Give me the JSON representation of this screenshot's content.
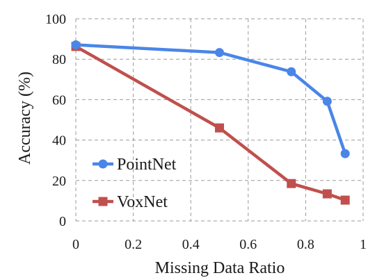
{
  "chart_data": {
    "type": "line",
    "title": "",
    "xlabel": "Missing Data Ratio",
    "ylabel": "Accuracy (%)",
    "xlim": [
      0,
      1
    ],
    "ylim": [
      0,
      100
    ],
    "xticks": [
      0,
      0.2,
      0.4,
      0.6,
      0.8,
      1
    ],
    "xtick_labels": [
      "0",
      "0.2",
      "0.4",
      "0.6",
      "0.8",
      "1"
    ],
    "yticks": [
      0,
      20,
      40,
      60,
      80,
      100
    ],
    "ytick_labels": [
      "0",
      "20",
      "40",
      "60",
      "80",
      "100"
    ],
    "grid": true,
    "grid_style": "dashed",
    "legend_position": "lower-left",
    "series": [
      {
        "name": "PointNet",
        "color": "#4A86E8",
        "marker": "circle",
        "x": [
          0,
          0.5,
          0.75,
          0.875,
          0.9375
        ],
        "y": [
          87.1,
          83.3,
          73.8,
          59.2,
          33.3
        ]
      },
      {
        "name": "VoxNet",
        "color": "#C0504D",
        "marker": "square",
        "x": [
          0,
          0.5,
          0.75,
          0.875,
          0.9375
        ],
        "y": [
          86.3,
          46.0,
          18.5,
          13.4,
          10.3
        ]
      }
    ]
  }
}
